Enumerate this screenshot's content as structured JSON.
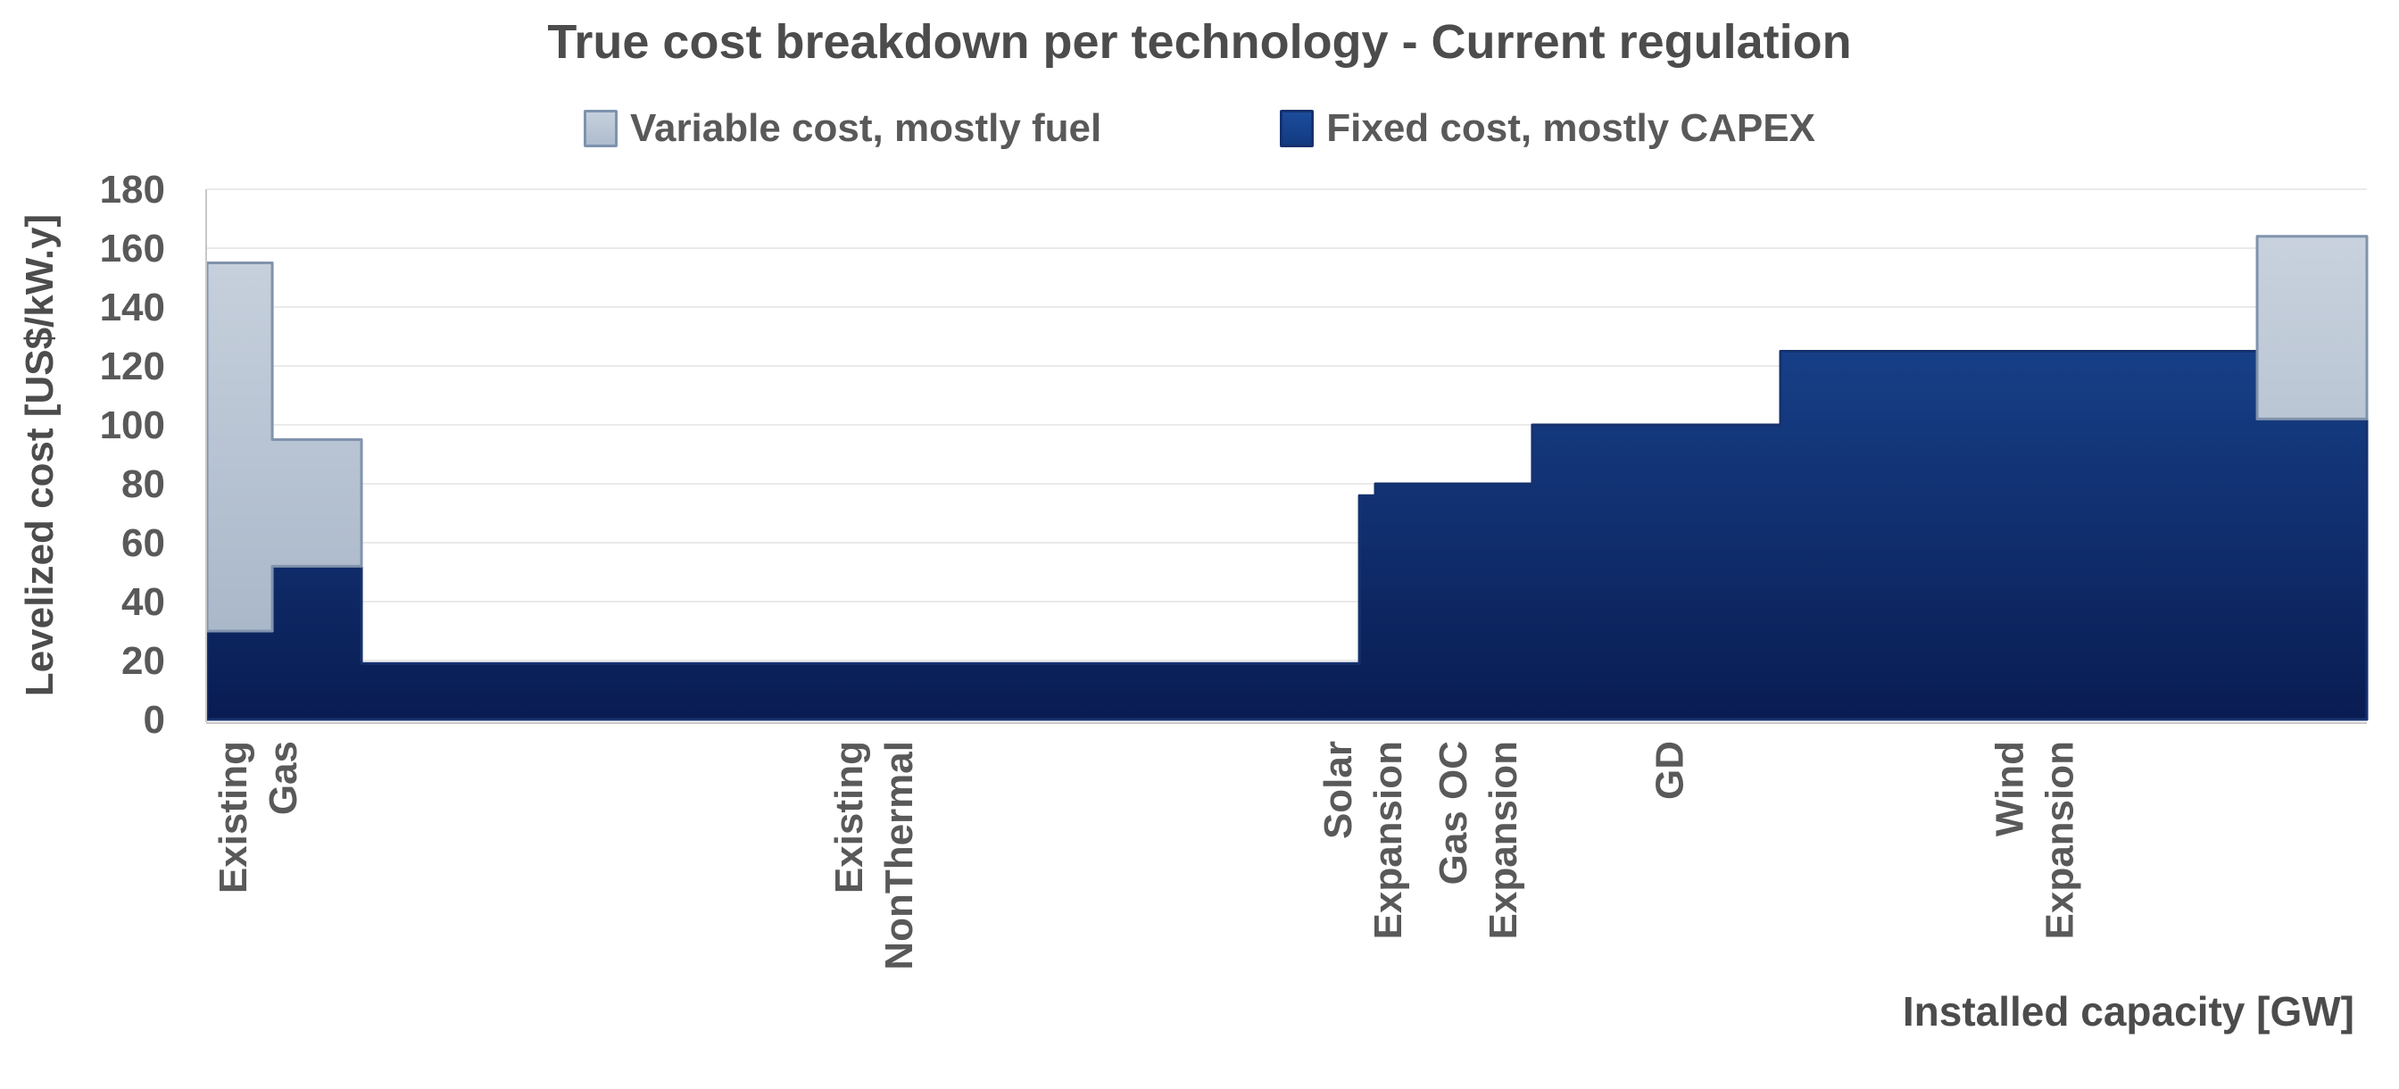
{
  "chart_data": {
    "type": "stacked-step-area",
    "title": "True cost breakdown per technology - Current regulation",
    "xlabel": "Installed capacity [GW]",
    "ylabel": "Levelized cost [US$/kW.y]",
    "ylim": [
      0,
      180
    ],
    "y_ticks": [
      0,
      20,
      40,
      60,
      80,
      100,
      120,
      140,
      160,
      180
    ],
    "grid": "on",
    "legend_position": "top-center",
    "series": [
      {
        "name": "Variable cost, mostly fuel",
        "role": "variable",
        "swatch": "light-blue-gray"
      },
      {
        "name": "Fixed cost, mostly CAPEX",
        "role": "fixed",
        "swatch": "dark-blue"
      }
    ],
    "segments": [
      {
        "label": "Existing Gas",
        "x0": 0.0,
        "x1": 0.0302,
        "fixed": 30,
        "variable": 125,
        "total": 155
      },
      {
        "label": "Existing Gas",
        "x0": 0.0302,
        "x1": 0.0715,
        "fixed": 52,
        "variable": 43,
        "total": 95
      },
      {
        "label": "Existing NonThermal",
        "x0": 0.0715,
        "x1": 0.5335,
        "fixed": 19,
        "variable": 0,
        "total": 19
      },
      {
        "label": "Solar Expansion",
        "x0": 0.5335,
        "x1": 0.5409,
        "fixed": 76,
        "variable": 0,
        "total": 76
      },
      {
        "label": "Gas OC Expansion",
        "x0": 0.5409,
        "x1": 0.6136,
        "fixed": 80,
        "variable": 0,
        "total": 80
      },
      {
        "label": "GD",
        "x0": 0.6136,
        "x1": 0.7285,
        "fixed": 100,
        "variable": 0,
        "total": 100
      },
      {
        "label": "Wind Expansion",
        "x0": 0.7285,
        "x1": 0.9492,
        "fixed": 125,
        "variable": 0,
        "total": 125
      },
      {
        "label": "",
        "x0": 0.9492,
        "x1": 1.0,
        "fixed": 102,
        "variable": 62,
        "total": 164
      }
    ],
    "x_axis_labels": [
      {
        "frac": 0.0165,
        "lines": [
          "Existing",
          "Gas"
        ]
      },
      {
        "frac": 0.3017,
        "lines": [
          "Existing",
          "NonThermal"
        ]
      },
      {
        "frac": 0.5281,
        "lines": [
          "Solar",
          "Expansion"
        ]
      },
      {
        "frac": 0.5814,
        "lines": [
          "Gas OC",
          "Expansion"
        ]
      },
      {
        "frac": 0.67,
        "lines": [
          "GD"
        ]
      },
      {
        "frac": 0.839,
        "lines": [
          "Wind",
          "Expansion"
        ]
      }
    ],
    "colors": {
      "fixed_fill_top": "#1d4f9f",
      "fixed_fill_bottom": "#091c52",
      "fixed_border": "#16316e",
      "variable_fill_top": "#ccd5e0",
      "variable_fill_bottom": "#a3b2c5",
      "variable_border": "#8093ac",
      "gridline": "#eaeaea",
      "axis_line": "#c8c8c8",
      "text": "#595959",
      "title": "#4c4c4c"
    }
  }
}
